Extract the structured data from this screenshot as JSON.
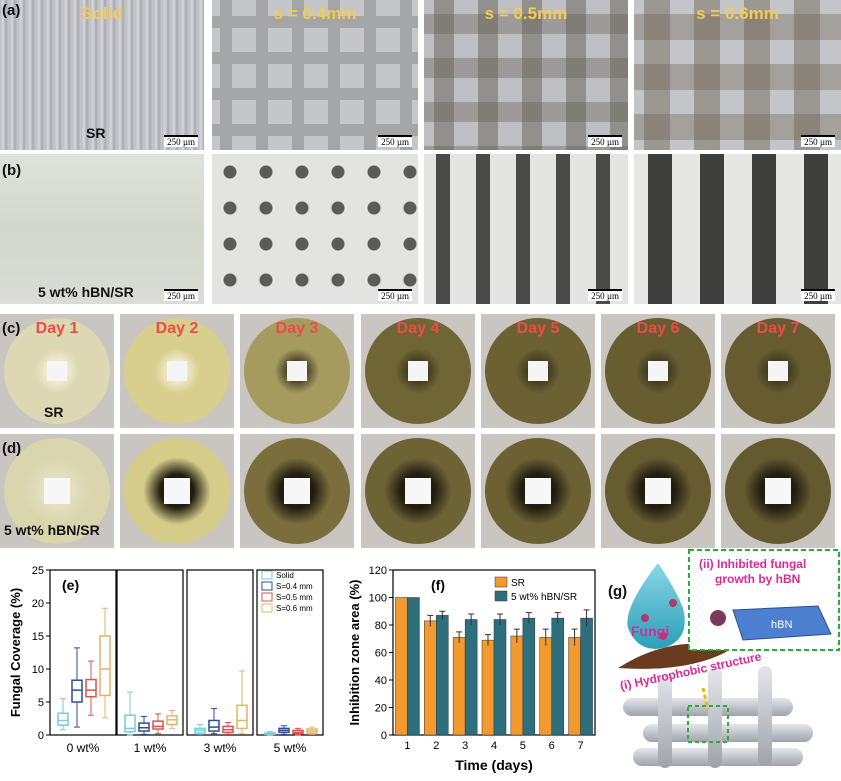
{
  "panels": {
    "a": "(a)",
    "b": "(b)",
    "c": "(c)",
    "d": "(d)",
    "e": "(e)",
    "f": "(f)",
    "g": "(g)"
  },
  "row_a": {
    "titles": [
      "Solid",
      "s = 0.4mm",
      "s = 0.5mm",
      "s = 0.6mm"
    ],
    "material": "SR",
    "scale": "250 µm"
  },
  "row_b": {
    "material": "5 wt% hBN/SR",
    "scale": "250 µm"
  },
  "row_c": {
    "days": [
      "Day 1",
      "Day 2",
      "Day 3",
      "Day 4",
      "Day 5",
      "Day 6",
      "Day 7"
    ],
    "material": "SR"
  },
  "row_d": {
    "material": "5 wt% hBN/SR"
  },
  "colors": {
    "solid": "#7fc7dc",
    "s04": "#2f4f8e",
    "s05": "#d9534f",
    "s06": "#e2b46a",
    "sr_bar": "#f29a2e",
    "hbn_bar": "#2e6f7e",
    "day_label": "#ef4a47",
    "title_yellow": "#f2cc55",
    "g_label": "#d62b9a",
    "g_box": "#2eaa3e"
  },
  "chart_data": [
    {
      "type": "box",
      "panel": "(e)",
      "ylabel": "Fungal Coverage (%)",
      "ylim": [
        0,
        25
      ],
      "yticks": [
        0,
        5,
        10,
        15,
        20,
        25
      ],
      "groups": [
        "0 wt%",
        "1 wt%",
        "3 wt%",
        "5 wt%"
      ],
      "legend": [
        "Solid",
        "S=0.4 mm",
        "S=0.5 mm",
        "S=0.6 mm"
      ],
      "legend_position": "top-right",
      "boxes": [
        [
          {
            "min": 0.8,
            "q1": 1.5,
            "median": 2.2,
            "q3": 3.3,
            "max": 5.5
          },
          {
            "min": 1.2,
            "q1": 5.0,
            "median": 6.8,
            "q3": 8.3,
            "max": 13.2
          },
          {
            "min": 3.0,
            "q1": 5.8,
            "median": 6.8,
            "q3": 8.4,
            "max": 11.2
          },
          {
            "min": 2.6,
            "q1": 6.0,
            "median": 10.0,
            "q3": 15.0,
            "max": 19.2
          }
        ],
        [
          {
            "min": 0.0,
            "q1": 0.5,
            "median": 1.0,
            "q3": 3.0,
            "max": 6.5
          },
          {
            "min": 0.1,
            "q1": 0.6,
            "median": 1.1,
            "q3": 1.8,
            "max": 2.8
          },
          {
            "min": 0.2,
            "q1": 0.9,
            "median": 1.3,
            "q3": 2.1,
            "max": 3.2
          },
          {
            "min": 1.0,
            "q1": 1.6,
            "median": 2.3,
            "q3": 2.9,
            "max": 3.7
          }
        ],
        [
          {
            "min": 0.1,
            "q1": 0.3,
            "median": 0.7,
            "q3": 1.0,
            "max": 1.6
          },
          {
            "min": 0.2,
            "q1": 0.6,
            "median": 1.2,
            "q3": 2.2,
            "max": 4.0
          },
          {
            "min": 0.1,
            "q1": 0.4,
            "median": 0.8,
            "q3": 1.3,
            "max": 1.9
          },
          {
            "min": 0.2,
            "q1": 1.0,
            "median": 2.2,
            "q3": 4.5,
            "max": 9.7
          }
        ],
        [
          {
            "min": 0.0,
            "q1": 0.1,
            "median": 0.2,
            "q3": 0.3,
            "max": 0.5
          },
          {
            "min": 0.1,
            "q1": 0.4,
            "median": 0.7,
            "q3": 1.0,
            "max": 1.4
          },
          {
            "min": 0.0,
            "q1": 0.2,
            "median": 0.4,
            "q3": 0.7,
            "max": 1.0
          },
          {
            "min": 0.1,
            "q1": 0.3,
            "median": 0.6,
            "q3": 0.9,
            "max": 1.2
          }
        ]
      ]
    },
    {
      "type": "bar",
      "panel": "(f)",
      "xlabel": "Time (days)",
      "ylabel": "Inhibition zone area (%)",
      "ylim": [
        0,
        120
      ],
      "yticks": [
        0,
        20,
        40,
        60,
        80,
        100,
        120
      ],
      "categories": [
        "1",
        "2",
        "3",
        "4",
        "5",
        "6",
        "7"
      ],
      "legend_position": "top-right",
      "series": [
        {
          "name": "SR",
          "values": [
            100,
            83,
            71,
            69,
            72,
            71,
            71
          ],
          "errors": [
            0,
            4,
            4,
            4,
            5,
            6,
            6
          ]
        },
        {
          "name": "5 wt% hBN/SR",
          "values": [
            100,
            87,
            84,
            84,
            85,
            85,
            85
          ],
          "errors": [
            0,
            3,
            4,
            4,
            4,
            4,
            6
          ]
        }
      ]
    }
  ],
  "schematic": {
    "fungi": "Fungi",
    "hydrophobic": "(i) Hydrophobic structure",
    "inhibited_line1": "(ii) Inhibited fungal",
    "inhibited_line2": "growth by hBN",
    "hbn": "hBN"
  }
}
